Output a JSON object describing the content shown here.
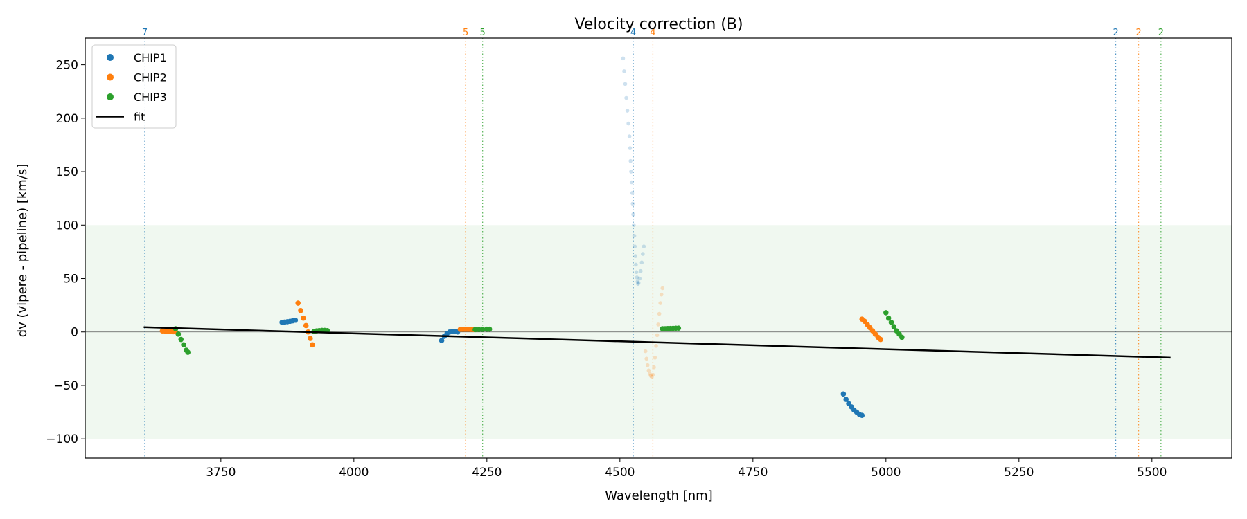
{
  "chart_data": {
    "type": "scatter",
    "title": "Velocity correction (B)",
    "xlabel": "Wavelength [nm]",
    "ylabel": "dv (vipere - pipeline) [km/s]",
    "xlim": [
      3495,
      5650
    ],
    "ylim": [
      -118,
      275
    ],
    "xticks": [
      3750,
      4000,
      4250,
      4500,
      4750,
      5000,
      5250,
      5500
    ],
    "yticks": [
      -100,
      -50,
      0,
      50,
      100,
      150,
      200,
      250
    ],
    "band": {
      "y0": -100,
      "y1": 100,
      "color": "#2ca02c"
    },
    "zero_line": 0,
    "legend_position": "top-left",
    "legend": [
      {
        "label": "CHIP1",
        "color": "#1f77b4",
        "kind": "dot"
      },
      {
        "label": "CHIP2",
        "color": "#ff7f0e",
        "kind": "dot"
      },
      {
        "label": "CHIP3",
        "color": "#2ca02c",
        "kind": "dot"
      },
      {
        "label": "fit",
        "color": "#000000",
        "kind": "line"
      }
    ],
    "fit": {
      "x": [
        3605,
        5535
      ],
      "y": [
        4.5,
        -24
      ]
    },
    "order_markers": [
      {
        "x": 3607,
        "label": "7",
        "color": "#1f77b4"
      },
      {
        "x": 4210,
        "label": "5",
        "color": "#ff7f0e"
      },
      {
        "x": 4242,
        "label": "5",
        "color": "#2ca02c"
      },
      {
        "x": 4525,
        "label": "4",
        "color": "#1f77b4"
      },
      {
        "x": 4562,
        "label": "4",
        "color": "#ff7f0e"
      },
      {
        "x": 5432,
        "label": "2",
        "color": "#1f77b4"
      },
      {
        "x": 5475,
        "label": "2",
        "color": "#ff7f0e"
      },
      {
        "x": 5517,
        "label": "2",
        "color": "#2ca02c"
      }
    ],
    "series": [
      {
        "name": "CHIP1",
        "color": "#1f77b4",
        "segments": [
          {
            "points": [
              [
                3865,
                9
              ],
              [
                3870,
                9.3
              ],
              [
                3875,
                9.6
              ],
              [
                3880,
                10
              ],
              [
                3885,
                10.5
              ],
              [
                3890,
                11
              ]
            ]
          },
          {
            "points": [
              [
                4165,
                -8
              ],
              [
                4170,
                -4
              ],
              [
                4175,
                -1.5
              ],
              [
                4180,
                0
              ],
              [
                4185,
                0.5
              ],
              [
                4190,
                0.5
              ],
              [
                4195,
                0
              ]
            ]
          },
          {
            "faint": true,
            "points": [
              [
                4506,
                256
              ],
              [
                4508,
                244
              ],
              [
                4510,
                232
              ],
              [
                4512,
                219
              ],
              [
                4514,
                207
              ],
              [
                4516,
                195
              ],
              [
                4518,
                183
              ],
              [
                4519,
                172
              ],
              [
                4520,
                160
              ],
              [
                4521,
                150
              ],
              [
                4522,
                140
              ],
              [
                4523,
                130
              ],
              [
                4524,
                120
              ],
              [
                4525,
                110
              ],
              [
                4526,
                100
              ],
              [
                4527,
                90
              ],
              [
                4528,
                80
              ],
              [
                4529,
                71
              ],
              [
                4530,
                63
              ],
              [
                4531,
                56
              ],
              [
                4532,
                51
              ],
              [
                4533,
                47
              ],
              [
                4534,
                45
              ],
              [
                4535,
                46
              ],
              [
                4537,
                50
              ],
              [
                4539,
                57
              ],
              [
                4541,
                65
              ],
              [
                4543,
                73
              ],
              [
                4545,
                80
              ]
            ]
          },
          {
            "points": [
              [
                4920,
                -58
              ],
              [
                4925,
                -63
              ],
              [
                4930,
                -67
              ],
              [
                4935,
                -70
              ],
              [
                4940,
                -73
              ],
              [
                4945,
                -75
              ],
              [
                4950,
                -77
              ],
              [
                4955,
                -78
              ]
            ]
          }
        ]
      },
      {
        "name": "CHIP2",
        "color": "#ff7f0e",
        "segments": [
          {
            "points": [
              [
                3640,
                1
              ],
              [
                3645,
                0.8
              ],
              [
                3650,
                0.6
              ],
              [
                3655,
                0.4
              ],
              [
                3660,
                0.2
              ],
              [
                3665,
                0
              ]
            ]
          },
          {
            "points": [
              [
                3895,
                27
              ],
              [
                3900,
                20
              ],
              [
                3905,
                13
              ],
              [
                3910,
                6
              ],
              [
                3914,
                0
              ],
              [
                3918,
                -6
              ],
              [
                3922,
                -12
              ]
            ]
          },
          {
            "points": [
              [
                4200,
                2.5
              ],
              [
                4205,
                2.5
              ],
              [
                4210,
                2.5
              ],
              [
                4215,
                2.5
              ],
              [
                4220,
                2.4
              ],
              [
                4225,
                2.3
              ],
              [
                4228,
                2.2
              ]
            ]
          },
          {
            "faint": true,
            "points": [
              [
                4548,
                -18
              ],
              [
                4550,
                -25
              ],
              [
                4552,
                -31
              ],
              [
                4554,
                -36
              ],
              [
                4556,
                -39
              ],
              [
                4558,
                -41
              ],
              [
                4560,
                -42
              ],
              [
                4562,
                -40
              ],
              [
                4564,
                -33
              ],
              [
                4566,
                -24
              ],
              [
                4568,
                -13
              ],
              [
                4570,
                -3
              ],
              [
                4572,
                7
              ],
              [
                4574,
                17
              ],
              [
                4576,
                27
              ],
              [
                4578,
                35
              ],
              [
                4580,
                41
              ]
            ]
          },
          {
            "points": [
              [
                4955,
                12
              ],
              [
                4960,
                10
              ],
              [
                4965,
                7
              ],
              [
                4970,
                4
              ],
              [
                4975,
                1
              ],
              [
                4980,
                -2
              ],
              [
                4985,
                -5
              ],
              [
                4990,
                -7
              ]
            ]
          }
        ]
      },
      {
        "name": "CHIP3",
        "color": "#2ca02c",
        "segments": [
          {
            "points": [
              [
                3665,
                3
              ],
              [
                3670,
                -2
              ],
              [
                3675,
                -7
              ],
              [
                3680,
                -12
              ],
              [
                3685,
                -17
              ],
              [
                3688,
                -19
              ]
            ]
          },
          {
            "points": [
              [
                3925,
                0.5
              ],
              [
                3930,
                1
              ],
              [
                3935,
                1.3
              ],
              [
                3940,
                1.5
              ],
              [
                3945,
                1.5
              ],
              [
                3950,
                1.3
              ]
            ]
          },
          {
            "points": [
              [
                4228,
                2.2
              ],
              [
                4235,
                2.3
              ],
              [
                4242,
                2.5
              ],
              [
                4250,
                2.6
              ],
              [
                4255,
                2.6
              ]
            ]
          },
          {
            "points": [
              [
                4580,
                3
              ],
              [
                4585,
                3
              ],
              [
                4590,
                3.2
              ],
              [
                4595,
                3.3
              ],
              [
                4600,
                3.4
              ],
              [
                4605,
                3.5
              ],
              [
                4610,
                3.6
              ]
            ]
          },
          {
            "points": [
              [
                5000,
                18
              ],
              [
                5005,
                13
              ],
              [
                5010,
                9
              ],
              [
                5015,
                5
              ],
              [
                5020,
                1
              ],
              [
                5025,
                -2
              ],
              [
                5030,
                -5
              ]
            ]
          }
        ]
      }
    ]
  }
}
